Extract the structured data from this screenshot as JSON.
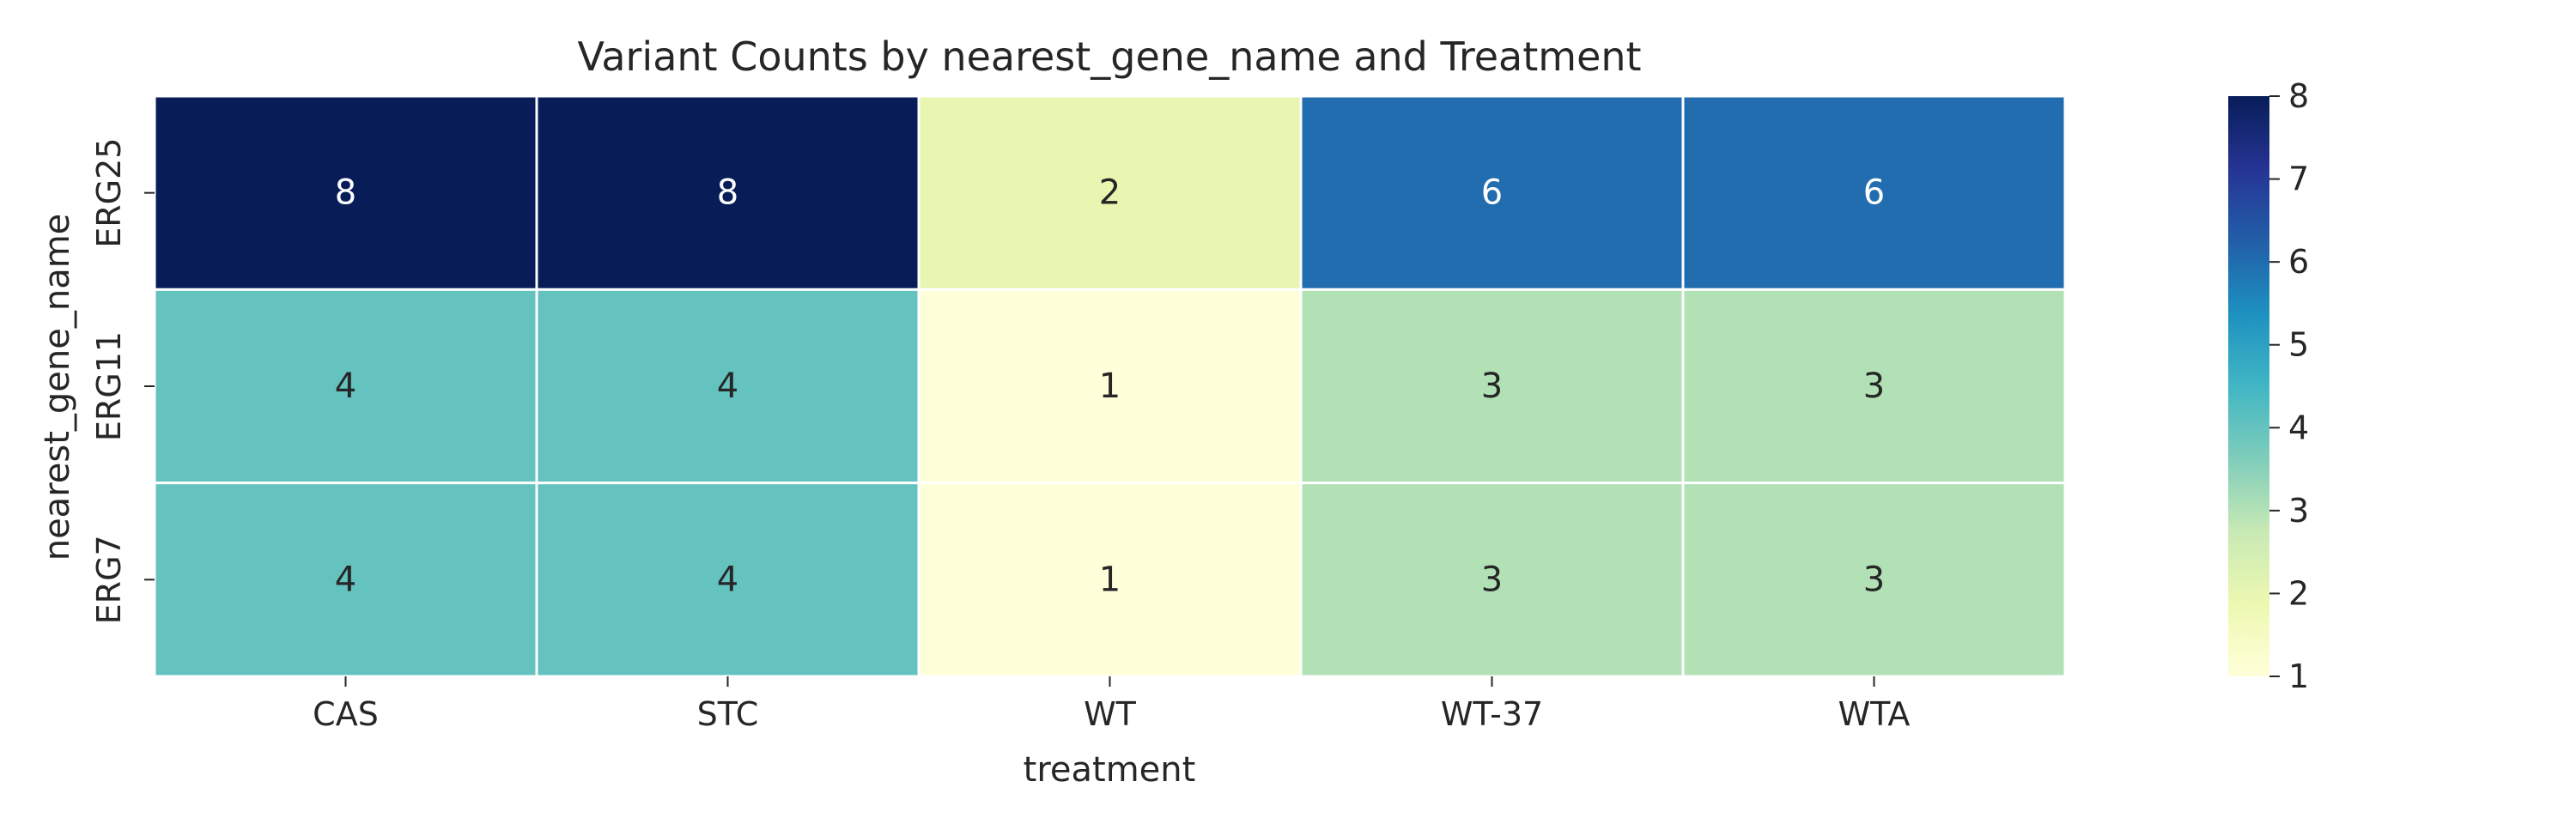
{
  "chart_data": {
    "type": "heatmap",
    "title": "Variant Counts by nearest_gene_name and Treatment",
    "xlabel": "treatment",
    "ylabel": "nearest_gene_name",
    "x_categories": [
      "CAS",
      "STC",
      "WT",
      "WT-37",
      "WTA"
    ],
    "y_categories": [
      "ERG25",
      "ERG11",
      "ERG7"
    ],
    "values": [
      [
        8,
        8,
        2,
        6,
        6
      ],
      [
        4,
        4,
        1,
        3,
        3
      ],
      [
        4,
        4,
        1,
        3,
        3
      ]
    ],
    "annotated": true,
    "colormap": "YlGnBu",
    "colorbar": {
      "vmin": 1,
      "vmax": 8,
      "ticks": [
        1,
        2,
        3,
        4,
        5,
        6,
        7,
        8
      ]
    },
    "colors": {
      "cell_border": "#ffffff",
      "text_dark": "#262626",
      "text_light": "#ffffff"
    }
  }
}
